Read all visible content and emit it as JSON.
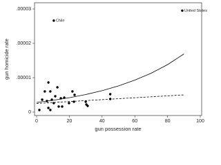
{
  "chart_data": {
    "type": "scatter",
    "xlabel": "gun possession rate",
    "ylabel": "gun homicide rate",
    "xlim": [
      0,
      100
    ],
    "ylim": [
      0,
      3e-05
    ],
    "xticks": [
      0,
      20,
      40,
      60,
      80,
      100
    ],
    "yticks": [
      0,
      {
        "value": 1e-05,
        "label": ".00001"
      },
      {
        "value": 2e-05,
        "label": ".00002"
      },
      {
        "value": 3e-05,
        "label": ".00003"
      }
    ],
    "series": [
      {
        "type": "scatter",
        "color": "#000000",
        "x": [
          89,
          10.5,
          7.2,
          5,
          8.4,
          12.7,
          3.4,
          6.3,
          9.3,
          11.4,
          14.8,
          16.9,
          10.5,
          7.2,
          8.4,
          13.5,
          15.6,
          19.8,
          21.9,
          23.2,
          22.8,
          1.7,
          30,
          30.4,
          31.2,
          45,
          45
        ],
        "values": [
          2.95e-05,
          2.66e-05,
          8.6e-06,
          6e-06,
          6e-06,
          7.2e-06,
          3.6e-06,
          3.2e-06,
          3.6e-06,
          4.6e-06,
          4e-06,
          4.2e-06,
          2.6e-06,
          1.2e-06,
          6e-07,
          1.6e-06,
          1.6e-06,
          2.6e-06,
          6e-06,
          5e-06,
          3e-06,
          6e-07,
          3e-06,
          2.2e-06,
          1.8e-06,
          5.2e-06,
          3.8e-06
        ],
        "point_labels": [
          "United States",
          "Chile",
          null,
          null,
          null,
          null,
          null,
          null,
          null,
          null,
          null,
          null,
          null,
          null,
          null,
          null,
          null,
          null,
          null,
          null,
          null,
          null,
          null,
          null,
          null,
          null,
          null
        ]
      },
      {
        "type": "line",
        "color": "#000000",
        "x": [
          0,
          10,
          20,
          30,
          40,
          50,
          60,
          70,
          80,
          90
        ],
        "values": [
          2.8e-06,
          3.42e-06,
          4.18e-06,
          5.1e-06,
          6.23e-06,
          7.6e-06,
          9.3e-06,
          1.13e-05,
          1.38e-05,
          1.69e-05
        ]
      },
      {
        "type": "line",
        "color": "#000000",
        "dash": true,
        "x": [
          0,
          90
        ],
        "values": [
          2.5e-06,
          5e-06
        ]
      }
    ]
  }
}
